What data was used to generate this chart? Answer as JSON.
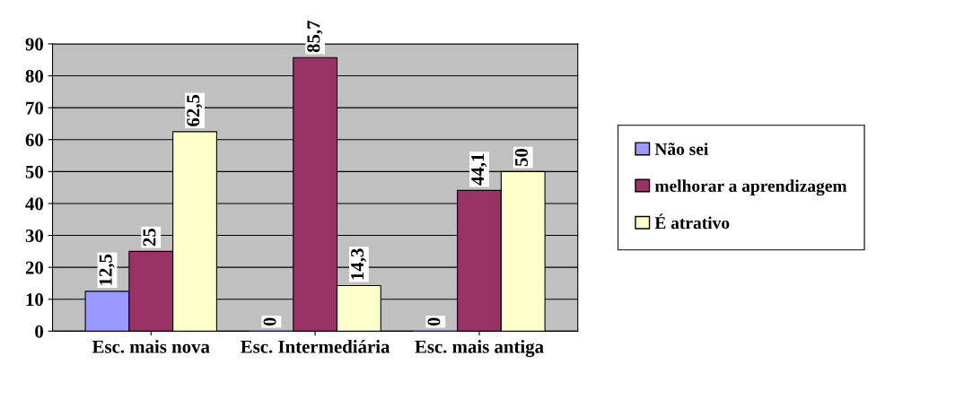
{
  "chart_data": {
    "type": "bar",
    "categories": [
      "Esc. mais nova",
      "Esc. Intermediária",
      "Esc. mais antiga"
    ],
    "series": [
      {
        "name": "Não sei",
        "color": "#9999ff",
        "values": [
          12.5,
          0,
          0
        ],
        "value_labels": [
          "12,5",
          "0",
          "0"
        ]
      },
      {
        "name": "melhorar a aprendizagem",
        "color": "#993366",
        "values": [
          25,
          85.7,
          44.1
        ],
        "value_labels": [
          "25",
          "85,7",
          "44,1"
        ]
      },
      {
        "name": "É atrativo",
        "color": "#ffffcc",
        "values": [
          62.5,
          14.3,
          50
        ],
        "value_labels": [
          "62,5",
          "14,3",
          "50"
        ]
      }
    ],
    "ylim": [
      0,
      90
    ],
    "yticks": [
      0,
      10,
      20,
      30,
      40,
      50,
      60,
      70,
      80,
      90
    ],
    "grid": "y",
    "legend": "right"
  }
}
